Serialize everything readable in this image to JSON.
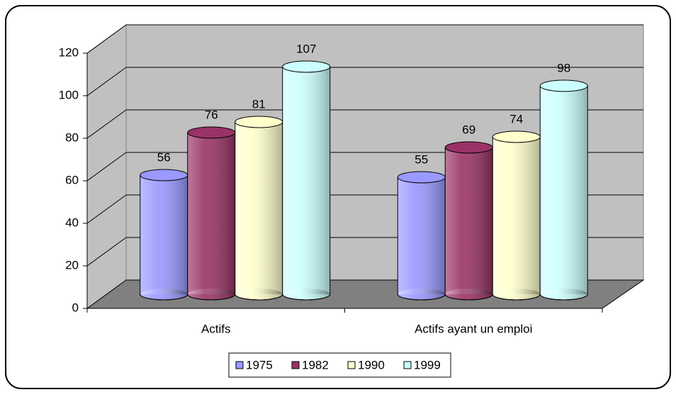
{
  "chart_data": {
    "type": "bar3d",
    "categories": [
      "Actifs",
      "Actifs ayant un emploi"
    ],
    "series": [
      {
        "name": "1975",
        "color": "#9999ff",
        "values": [
          56,
          55
        ]
      },
      {
        "name": "1982",
        "color": "#993366",
        "values": [
          76,
          69
        ]
      },
      {
        "name": "1990",
        "color": "#ffffcc",
        "values": [
          81,
          74
        ]
      },
      {
        "name": "1999",
        "color": "#ccffff",
        "values": [
          107,
          98
        ]
      }
    ],
    "ylim": [
      0,
      120
    ],
    "yticks": [
      0,
      20,
      40,
      60,
      80,
      100,
      120
    ],
    "grid": true,
    "legend": "bottom"
  }
}
